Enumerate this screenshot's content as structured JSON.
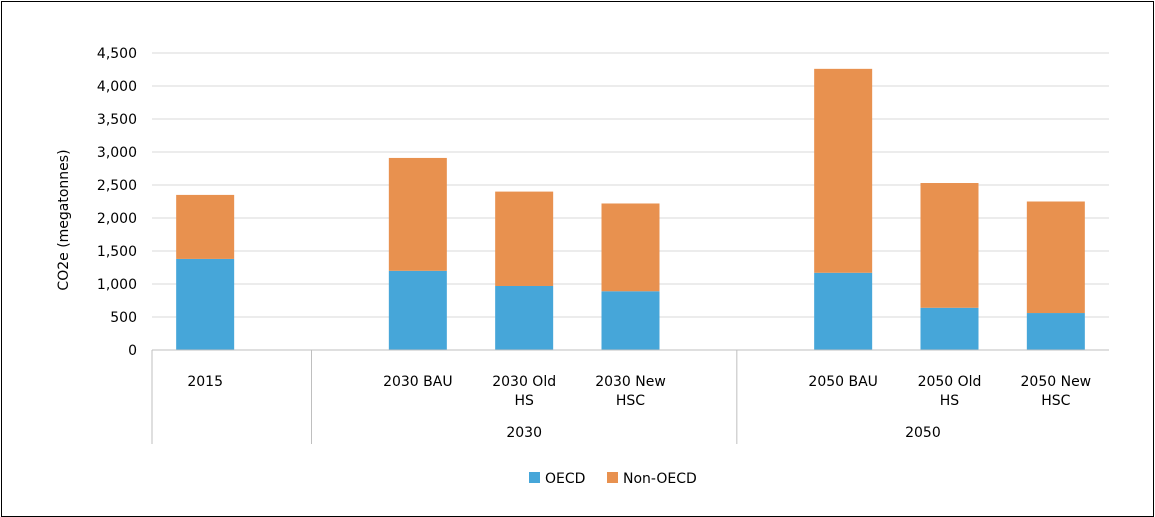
{
  "chart_data": {
    "type": "bar",
    "stacked": true,
    "categories": [
      "2015",
      "2030 BAU",
      "2030 Old HS",
      "2030 New HSC",
      "2050 BAU",
      "2050 Old HS",
      "2050 New HSC"
    ],
    "category_lines": [
      [
        "2015"
      ],
      [
        "2030 BAU"
      ],
      [
        "2030 Old",
        "HS"
      ],
      [
        "2030 New",
        "HSC"
      ],
      [
        "2050 BAU"
      ],
      [
        "2050 Old",
        "HS"
      ],
      [
        "2050 New",
        "HSC"
      ]
    ],
    "groups": [
      {
        "label": "",
        "categories": [
          "2015"
        ]
      },
      {
        "label": "2030",
        "categories": [
          "2030 BAU",
          "2030 Old HS",
          "2030 New HSC"
        ]
      },
      {
        "label": "2050",
        "categories": [
          "2050 BAU",
          "2050 Old HS",
          "2050 New HSC"
        ]
      }
    ],
    "series": [
      {
        "name": "OECD",
        "color": "#46a6d9",
        "values": [
          1380,
          1200,
          970,
          890,
          1170,
          640,
          560
        ]
      },
      {
        "name": "Non-OECD",
        "color": "#e8914f",
        "values": [
          970,
          1710,
          1430,
          1330,
          3090,
          1890,
          1690
        ]
      }
    ],
    "ylabel": "CO2e (megatonnes)",
    "xlabel": "",
    "ylim": [
      0,
      4500
    ],
    "yticks": [
      "0",
      "500",
      "1,000",
      "1,500",
      "2,000",
      "2,500",
      "3,000",
      "3,500",
      "4,000",
      "4,500"
    ],
    "grid": true,
    "legend_position": "bottom"
  }
}
